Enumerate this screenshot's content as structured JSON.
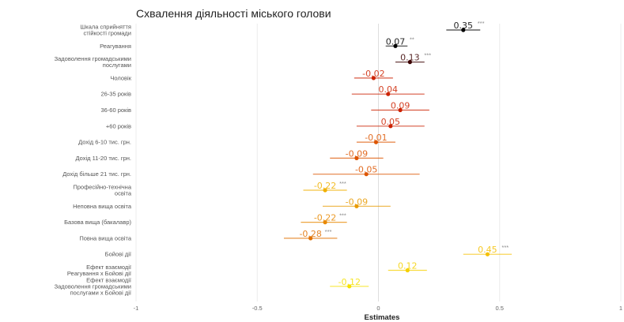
{
  "chart_data": {
    "type": "forest",
    "title": "Схвалення діяльності міського голови",
    "xlabel": "Estimates",
    "xlim": [
      -1,
      1
    ],
    "x_ticks": [
      "-1",
      "-0.5",
      "0",
      "0.5",
      "1"
    ],
    "x_tick_values": [
      -1,
      -0.5,
      0,
      0.5,
      1
    ],
    "grid": true,
    "rows": [
      {
        "label": [
          "Шкала сприйняття",
          "стійкості громади"
        ],
        "estimate": 0.35,
        "display": "0.35",
        "stars": "***",
        "ci": [
          0.28,
          0.42
        ],
        "color": "#000000"
      },
      {
        "label": [
          "Реагування"
        ],
        "estimate": 0.07,
        "display": "0.07",
        "stars": "**",
        "ci": [
          0.03,
          0.12
        ],
        "color": "#000000"
      },
      {
        "label": [
          "Задоволення громадськими",
          "послугами"
        ],
        "estimate": 0.13,
        "display": "0.13",
        "stars": "***",
        "ci": [
          0.07,
          0.19
        ],
        "color": "#3a0000"
      },
      {
        "label": [
          "Чоловік"
        ],
        "estimate": -0.02,
        "display": "-0.02",
        "stars": "",
        "ci": [
          -0.1,
          0.06
        ],
        "color": "#cc2200"
      },
      {
        "label": [
          "26-35 років"
        ],
        "estimate": 0.04,
        "display": "0.04",
        "stars": "",
        "ci": [
          -0.11,
          0.19
        ],
        "color": "#cc2200"
      },
      {
        "label": [
          "36-60 років"
        ],
        "estimate": 0.09,
        "display": "0.09",
        "stars": "",
        "ci": [
          -0.03,
          0.21
        ],
        "color": "#cc2200"
      },
      {
        "label": [
          "+60 років"
        ],
        "estimate": 0.05,
        "display": "0.05",
        "stars": "",
        "ci": [
          -0.09,
          0.19
        ],
        "color": "#cc2200"
      },
      {
        "label": [
          "Дохід 6-10 тис. грн."
        ],
        "estimate": -0.01,
        "display": "-0.01",
        "stars": "",
        "ci": [
          -0.09,
          0.07
        ],
        "color": "#dd5500"
      },
      {
        "label": [
          "Дохід 11-20 тис. грн."
        ],
        "estimate": -0.09,
        "display": "-0.09",
        "stars": "",
        "ci": [
          -0.2,
          0.02
        ],
        "color": "#dd5500"
      },
      {
        "label": [
          "Дохід більше 21 тис. грн."
        ],
        "estimate": -0.05,
        "display": "-0.05",
        "stars": "",
        "ci": [
          -0.27,
          0.17
        ],
        "color": "#dd5500"
      },
      {
        "label": [
          "Професійно-технічна",
          "освіта"
        ],
        "estimate": -0.22,
        "display": "-0.22",
        "stars": "***",
        "ci": [
          -0.31,
          -0.13
        ],
        "color": "#f0b000"
      },
      {
        "label": [
          "Неповна вища освіта"
        ],
        "estimate": -0.09,
        "display": "-0.09",
        "stars": "",
        "ci": [
          -0.23,
          0.05
        ],
        "color": "#e89a00"
      },
      {
        "label": [
          "Базова вища (бакалавр)"
        ],
        "estimate": -0.22,
        "display": "-0.22",
        "stars": "***",
        "ci": [
          -0.32,
          -0.13
        ],
        "color": "#e88800"
      },
      {
        "label": [
          "Повна вища освіта"
        ],
        "estimate": -0.28,
        "display": "-0.28",
        "stars": "***",
        "ci": [
          -0.39,
          -0.17
        ],
        "color": "#e07000"
      },
      {
        "label": [
          "Бойові дії"
        ],
        "estimate": 0.45,
        "display": "0.45",
        "stars": "***",
        "ci": [
          0.35,
          0.55
        ],
        "color": "#f5c000"
      },
      {
        "label": [
          "Ефект взаємодії",
          "Реагування x Бойові дії"
        ],
        "estimate": 0.12,
        "display": "0.12",
        "stars": "",
        "ci": [
          0.04,
          0.2
        ],
        "color": "#f5d000"
      },
      {
        "label": [
          "Ефект взаємодії",
          "Задоволення громадськими",
          "послугами x Бойові дії"
        ],
        "estimate": -0.12,
        "display": "-0.12",
        "stars": "",
        "ci": [
          -0.2,
          -0.04
        ],
        "color": "#f5e000"
      }
    ]
  }
}
